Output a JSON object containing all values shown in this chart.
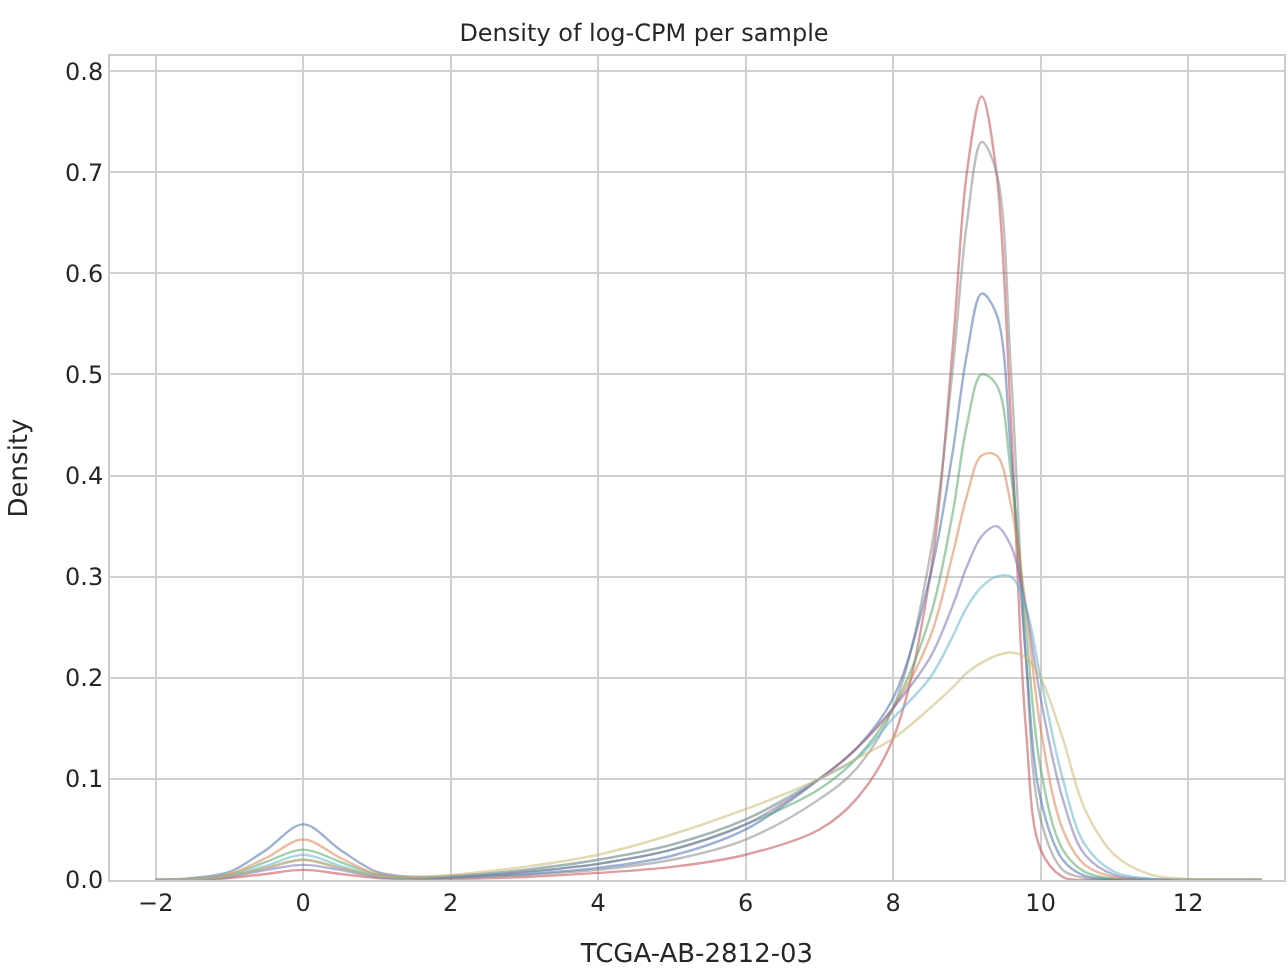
{
  "chart_data": {
    "type": "line",
    "title": "Density of log-CPM per sample",
    "xlabel": "TCGA-AB-2812-03",
    "ylabel": "Density",
    "x": [
      -2,
      -1.5,
      -1,
      -0.5,
      0,
      0.5,
      1,
      1.5,
      2,
      3,
      4,
      5,
      6,
      7,
      7.5,
      8,
      8.5,
      8.8,
      9,
      9.2,
      9.4,
      9.6,
      9.8,
      10,
      10.3,
      10.6,
      11,
      11.5,
      12,
      13
    ],
    "series": [
      {
        "color": "#c44e52",
        "values": [
          0,
          0,
          0.002,
          0.006,
          0.01,
          0.006,
          0.002,
          0.001,
          0.001,
          0.003,
          0.007,
          0.013,
          0.025,
          0.05,
          0.08,
          0.14,
          0.3,
          0.52,
          0.7,
          0.775,
          0.7,
          0.45,
          0.15,
          0.03,
          0.003,
          0,
          0,
          0,
          0,
          0
        ]
      },
      {
        "color": "#8c8c8c",
        "values": [
          0,
          0.001,
          0.004,
          0.012,
          0.02,
          0.012,
          0.004,
          0.002,
          0.002,
          0.005,
          0.01,
          0.02,
          0.04,
          0.08,
          0.11,
          0.17,
          0.32,
          0.5,
          0.65,
          0.73,
          0.7,
          0.5,
          0.22,
          0.06,
          0.01,
          0.002,
          0,
          0,
          0,
          0
        ]
      },
      {
        "color": "#4c72b0",
        "values": [
          0,
          0.002,
          0.008,
          0.03,
          0.055,
          0.03,
          0.008,
          0.003,
          0.003,
          0.006,
          0.012,
          0.024,
          0.05,
          0.1,
          0.13,
          0.18,
          0.3,
          0.42,
          0.52,
          0.58,
          0.56,
          0.42,
          0.22,
          0.08,
          0.02,
          0.004,
          0.001,
          0,
          0,
          0
        ]
      },
      {
        "color": "#55a868",
        "values": [
          0,
          0.001,
          0.005,
          0.018,
          0.03,
          0.018,
          0.005,
          0.002,
          0.003,
          0.008,
          0.016,
          0.03,
          0.055,
          0.09,
          0.12,
          0.17,
          0.26,
          0.36,
          0.45,
          0.5,
          0.49,
          0.4,
          0.25,
          0.11,
          0.03,
          0.008,
          0.001,
          0,
          0,
          0
        ]
      },
      {
        "color": "#dd8452",
        "values": [
          0,
          0.001,
          0.006,
          0.022,
          0.04,
          0.022,
          0.006,
          0.003,
          0.004,
          0.01,
          0.02,
          0.035,
          0.06,
          0.1,
          0.13,
          0.17,
          0.24,
          0.32,
          0.38,
          0.42,
          0.42,
          0.37,
          0.27,
          0.15,
          0.05,
          0.015,
          0.003,
          0,
          0,
          0
        ]
      },
      {
        "color": "#8172b3",
        "values": [
          0,
          0,
          0.003,
          0.01,
          0.015,
          0.01,
          0.003,
          0.002,
          0.003,
          0.008,
          0.016,
          0.03,
          0.055,
          0.1,
          0.13,
          0.17,
          0.22,
          0.27,
          0.31,
          0.34,
          0.35,
          0.33,
          0.27,
          0.18,
          0.08,
          0.025,
          0.005,
          0.001,
          0,
          0
        ]
      },
      {
        "color": "#64b5cd",
        "values": [
          0,
          0.001,
          0.004,
          0.014,
          0.025,
          0.014,
          0.004,
          0.002,
          0.004,
          0.01,
          0.02,
          0.035,
          0.06,
          0.1,
          0.12,
          0.16,
          0.2,
          0.24,
          0.27,
          0.29,
          0.3,
          0.3,
          0.27,
          0.2,
          0.1,
          0.035,
          0.008,
          0.001,
          0,
          0
        ]
      },
      {
        "color": "#ccb974",
        "values": [
          0,
          0.001,
          0.004,
          0.012,
          0.02,
          0.012,
          0.004,
          0.003,
          0.005,
          0.013,
          0.025,
          0.045,
          0.07,
          0.1,
          0.12,
          0.14,
          0.17,
          0.19,
          0.205,
          0.215,
          0.222,
          0.225,
          0.22,
          0.2,
          0.14,
          0.07,
          0.025,
          0.005,
          0.001,
          0
        ]
      }
    ],
    "xlim": [
      -2.62,
      13.3
    ],
    "xticks": [
      {
        "value": -2,
        "label": "−2"
      },
      0,
      2,
      4,
      6,
      8,
      10,
      12
    ],
    "ylim": [
      0,
      0.815
    ],
    "yticks": [
      {
        "value": 0,
        "label": "0.0"
      },
      0.1,
      0.2,
      0.3,
      0.4,
      0.5,
      0.6,
      0.7,
      0.8
    ],
    "grid": true,
    "marker": "none",
    "line_style": "solid"
  }
}
